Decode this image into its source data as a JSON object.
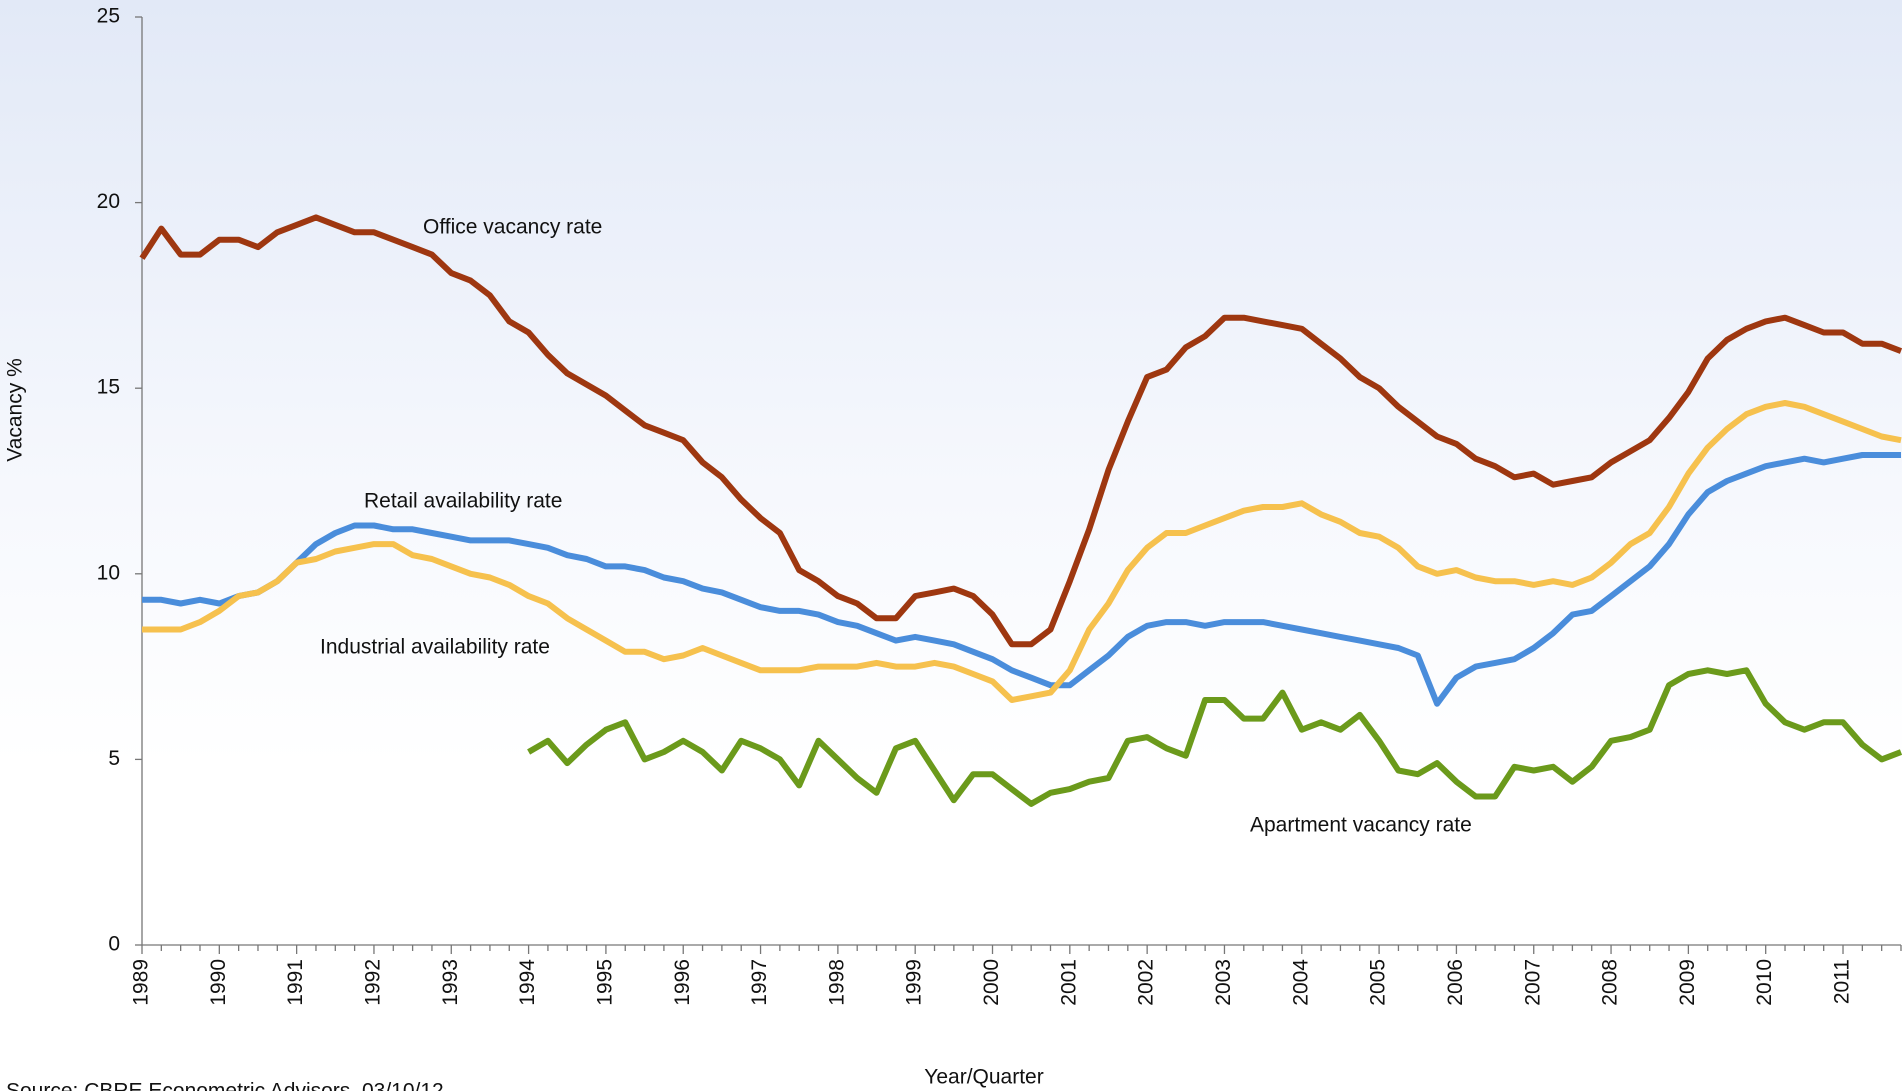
{
  "chart_data": {
    "type": "line",
    "y_label": "Vacancy %",
    "x_label": "Year/Quarter",
    "source": "Source: CBRE Econometric Advisors, 03/10/12",
    "ylim": [
      0,
      25
    ],
    "yticks": [
      0,
      5,
      10,
      15,
      20,
      25
    ],
    "categories": [
      "1989",
      null,
      null,
      null,
      "1990",
      null,
      null,
      null,
      "1991",
      null,
      null,
      null,
      "1992",
      null,
      null,
      null,
      "1993",
      null,
      null,
      null,
      "1994",
      null,
      null,
      null,
      "1995",
      null,
      null,
      null,
      "1996",
      null,
      null,
      null,
      "1997",
      null,
      null,
      null,
      "1998",
      null,
      null,
      null,
      "1999",
      null,
      null,
      null,
      "2000",
      null,
      null,
      null,
      "2001",
      null,
      null,
      null,
      "2002",
      null,
      null,
      null,
      "2003",
      null,
      null,
      null,
      "2004",
      null,
      null,
      null,
      "2005",
      null,
      null,
      null,
      "2006",
      null,
      null,
      null,
      "2007",
      null,
      null,
      null,
      "2008",
      null,
      null,
      null,
      "2009",
      null,
      null,
      null,
      "2010",
      null,
      null,
      null,
      "2011",
      null,
      null,
      null
    ],
    "series": [
      {
        "name": "Office vacancy rate",
        "color": "#9e3710",
        "values": [
          18.5,
          19.3,
          18.6,
          18.6,
          19.0,
          19.0,
          18.8,
          19.2,
          19.4,
          19.6,
          19.4,
          19.2,
          19.2,
          19.0,
          18.8,
          18.6,
          18.1,
          17.9,
          17.5,
          16.8,
          16.5,
          15.9,
          15.4,
          15.1,
          14.8,
          14.4,
          14.0,
          13.8,
          13.6,
          13.0,
          12.6,
          12.0,
          11.5,
          11.1,
          10.1,
          9.8,
          9.4,
          9.2,
          8.8,
          8.8,
          9.4,
          9.5,
          9.6,
          9.4,
          8.9,
          8.1,
          8.1,
          8.5,
          9.8,
          11.2,
          12.8,
          14.1,
          15.3,
          15.5,
          16.1,
          16.4,
          16.9,
          16.9,
          16.8,
          16.7,
          16.6,
          16.2,
          15.8,
          15.3,
          15.0,
          14.5,
          14.1,
          13.7,
          13.5,
          13.1,
          12.9,
          12.6,
          12.7,
          12.4,
          12.5,
          12.6,
          13.0,
          13.3,
          13.6,
          14.2,
          14.9,
          15.8,
          16.3,
          16.6,
          16.8,
          16.9,
          16.7,
          16.5,
          16.5,
          16.2,
          16.2,
          16.0
        ]
      },
      {
        "name": "Retail availability rate",
        "color": "#4a8ddb",
        "values": [
          9.3,
          9.3,
          9.2,
          9.3,
          9.2,
          9.4,
          9.5,
          9.8,
          10.3,
          10.8,
          11.1,
          11.3,
          11.3,
          11.2,
          11.2,
          11.1,
          11.0,
          10.9,
          10.9,
          10.9,
          10.8,
          10.7,
          10.5,
          10.4,
          10.2,
          10.2,
          10.1,
          9.9,
          9.8,
          9.6,
          9.5,
          9.3,
          9.1,
          9.0,
          9.0,
          8.9,
          8.7,
          8.6,
          8.4,
          8.2,
          8.3,
          8.2,
          8.1,
          7.9,
          7.7,
          7.4,
          7.2,
          7.0,
          7.0,
          7.4,
          7.8,
          8.3,
          8.6,
          8.7,
          8.7,
          8.6,
          8.7,
          8.7,
          8.7,
          8.6,
          8.5,
          8.4,
          8.3,
          8.2,
          8.1,
          8.0,
          7.8,
          6.5,
          7.2,
          7.5,
          7.6,
          7.7,
          8.0,
          8.4,
          8.9,
          9.0,
          9.4,
          9.8,
          10.2,
          10.8,
          11.6,
          12.2,
          12.5,
          12.7,
          12.9,
          13.0,
          13.1,
          13.0,
          13.1,
          13.2,
          13.2,
          13.2
        ]
      },
      {
        "name": "Industrial availability rate",
        "color": "#f6c14e",
        "values": [
          8.5,
          8.5,
          8.5,
          8.7,
          9.0,
          9.4,
          9.5,
          9.8,
          10.3,
          10.4,
          10.6,
          10.7,
          10.8,
          10.8,
          10.5,
          10.4,
          10.2,
          10.0,
          9.9,
          9.7,
          9.4,
          9.2,
          8.8,
          8.5,
          8.2,
          7.9,
          7.9,
          7.7,
          7.8,
          8.0,
          7.8,
          7.6,
          7.4,
          7.4,
          7.4,
          7.5,
          7.5,
          7.5,
          7.6,
          7.5,
          7.5,
          7.6,
          7.5,
          7.3,
          7.1,
          6.6,
          6.7,
          6.8,
          7.4,
          8.5,
          9.2,
          10.1,
          10.7,
          11.1,
          11.1,
          11.3,
          11.5,
          11.7,
          11.8,
          11.8,
          11.9,
          11.6,
          11.4,
          11.1,
          11.0,
          10.7,
          10.2,
          10.0,
          10.1,
          9.9,
          9.8,
          9.8,
          9.7,
          9.8,
          9.7,
          9.9,
          10.3,
          10.8,
          11.1,
          11.8,
          12.7,
          13.4,
          13.9,
          14.3,
          14.5,
          14.6,
          14.5,
          14.3,
          14.1,
          13.9,
          13.7,
          13.6
        ]
      },
      {
        "name": "Apartment vacancy rate",
        "color": "#6b9a1b",
        "values": [
          null,
          null,
          null,
          null,
          null,
          null,
          null,
          null,
          null,
          null,
          null,
          null,
          null,
          null,
          null,
          null,
          null,
          null,
          null,
          null,
          5.2,
          5.5,
          4.9,
          5.4,
          5.8,
          6.0,
          5.0,
          5.2,
          5.5,
          5.2,
          4.7,
          5.5,
          5.3,
          5.0,
          4.3,
          5.5,
          5.0,
          4.5,
          4.1,
          5.3,
          5.5,
          4.7,
          3.9,
          4.6,
          4.6,
          4.2,
          3.8,
          4.1,
          4.2,
          4.4,
          4.5,
          5.5,
          5.6,
          5.3,
          5.1,
          6.6,
          6.6,
          6.1,
          6.1,
          6.8,
          5.8,
          6.0,
          5.8,
          6.2,
          5.5,
          4.7,
          4.6,
          4.9,
          4.4,
          4.0,
          4.0,
          4.8,
          4.7,
          4.8,
          4.4,
          4.8,
          5.5,
          5.6,
          5.8,
          7.0,
          7.3,
          7.4,
          7.3,
          7.4,
          6.5,
          6.0,
          5.8,
          6.0,
          6.0,
          5.4,
          5.0,
          5.2
        ]
      }
    ]
  }
}
